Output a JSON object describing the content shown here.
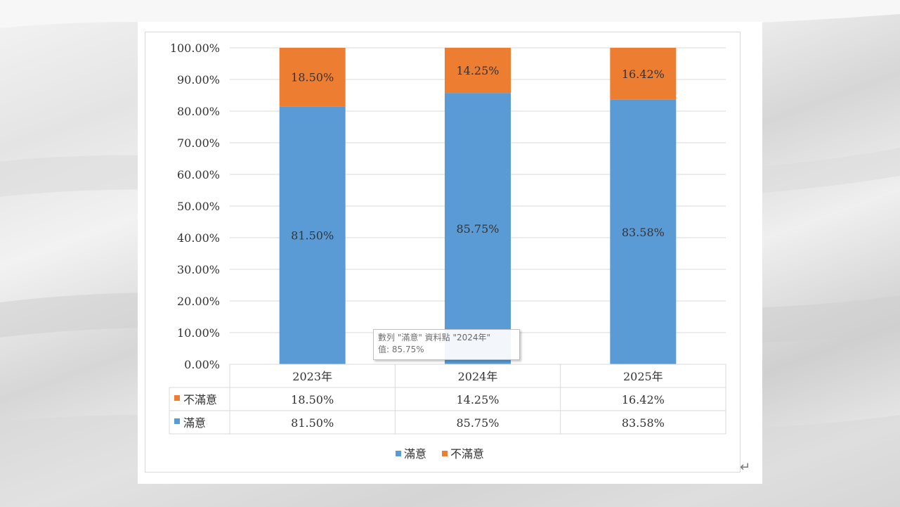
{
  "chart_data": {
    "type": "bar",
    "stacked": true,
    "categories": [
      "2023年",
      "2024年",
      "2025年"
    ],
    "series": [
      {
        "name": "滿意",
        "values": [
          81.5,
          85.75,
          83.58
        ],
        "labels": [
          "81.50%",
          "85.75%",
          "83.58%"
        ],
        "color": "#5b9bd5"
      },
      {
        "name": "不滿意",
        "values": [
          18.5,
          14.25,
          16.42
        ],
        "labels": [
          "18.50%",
          "14.25%",
          "16.42%"
        ],
        "color": "#ed7d31"
      }
    ],
    "ylim": [
      0,
      100
    ],
    "yticks": [
      "0.00%",
      "10.00%",
      "20.00%",
      "30.00%",
      "40.00%",
      "50.00%",
      "60.00%",
      "70.00%",
      "80.00%",
      "90.00%",
      "100.00%"
    ],
    "grid": true,
    "legend_position": "bottom",
    "data_table": true
  },
  "tooltip": {
    "line1": "數列 \"滿意\" 資料點 \"2024年\"",
    "line2": "值: 85.75%"
  },
  "paragraph_mark": "↵"
}
